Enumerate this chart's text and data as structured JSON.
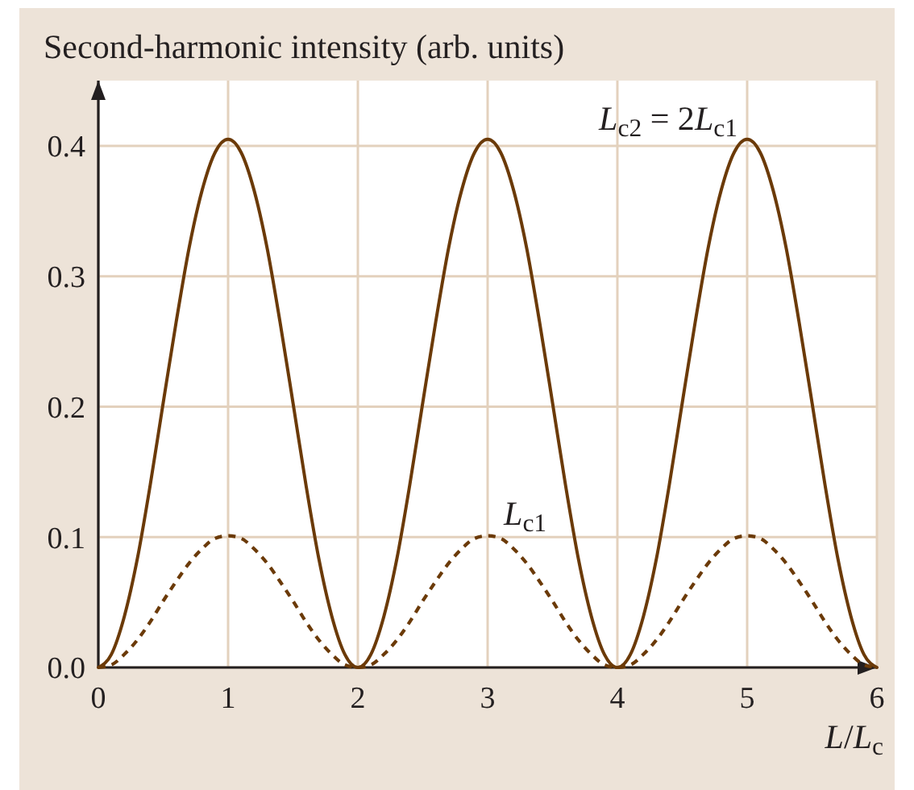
{
  "chart_data": {
    "type": "line",
    "ylabel": "Second-harmonic intensity (arb. units)",
    "xlabel": "L/L$_{c}$",
    "x": [
      0,
      0.1,
      0.2,
      0.3,
      0.4,
      0.5,
      0.6,
      0.7,
      0.8,
      0.9,
      1,
      1.1,
      1.2,
      1.3,
      1.4,
      1.5,
      1.6,
      1.7,
      1.8,
      1.9,
      2,
      2.1,
      2.2,
      2.3,
      2.4,
      2.5,
      2.6,
      2.7,
      2.8,
      2.9,
      3,
      3.1,
      3.2,
      3.3,
      3.4,
      3.5,
      3.6,
      3.7,
      3.8,
      3.9,
      4,
      4.1,
      4.2,
      4.3,
      4.4,
      4.5,
      4.6,
      4.7,
      4.8,
      4.9,
      5,
      5.1,
      5.2,
      5.3,
      5.4,
      5.5,
      5.6,
      5.7,
      5.8,
      5.9,
      6
    ],
    "series": [
      {
        "name": "L$_{c2}$ = 2L$_{c1}$",
        "color": "#6b3a08",
        "line_style": "solid",
        "values": [
          0,
          0.01,
          0.039,
          0.083,
          0.14,
          0.203,
          0.265,
          0.322,
          0.366,
          0.395,
          0.405,
          0.395,
          0.366,
          0.322,
          0.265,
          0.203,
          0.14,
          0.083,
          0.039,
          0.01,
          0,
          0.01,
          0.039,
          0.083,
          0.14,
          0.203,
          0.265,
          0.322,
          0.366,
          0.395,
          0.405,
          0.395,
          0.366,
          0.322,
          0.265,
          0.203,
          0.14,
          0.083,
          0.039,
          0.01,
          0,
          0.01,
          0.039,
          0.083,
          0.14,
          0.203,
          0.265,
          0.322,
          0.366,
          0.395,
          0.405,
          0.395,
          0.366,
          0.322,
          0.265,
          0.203,
          0.14,
          0.083,
          0.039,
          0.01,
          0
        ]
      },
      {
        "name": "L$_{c1}$",
        "color": "#6b3a08",
        "line_style": "dashed",
        "values": [
          0,
          0.002,
          0.01,
          0.021,
          0.035,
          0.051,
          0.066,
          0.08,
          0.091,
          0.099,
          0.101,
          0.099,
          0.091,
          0.08,
          0.066,
          0.051,
          0.035,
          0.021,
          0.01,
          0.002,
          0,
          0.002,
          0.01,
          0.021,
          0.035,
          0.051,
          0.066,
          0.08,
          0.091,
          0.099,
          0.101,
          0.099,
          0.091,
          0.08,
          0.066,
          0.051,
          0.035,
          0.021,
          0.01,
          0.002,
          0,
          0.002,
          0.01,
          0.021,
          0.035,
          0.051,
          0.066,
          0.08,
          0.091,
          0.099,
          0.101,
          0.099,
          0.091,
          0.08,
          0.066,
          0.051,
          0.035,
          0.021,
          0.01,
          0.002,
          0
        ]
      }
    ],
    "xlim": [
      0,
      6
    ],
    "xticks": [
      0,
      1,
      2,
      3,
      4,
      5,
      6
    ],
    "ylim": [
      0,
      0.45
    ],
    "yticks": [
      {
        "value": 0,
        "label": "0.0"
      },
      0.1,
      0.2,
      0.3,
      0.4
    ],
    "grid": true
  }
}
